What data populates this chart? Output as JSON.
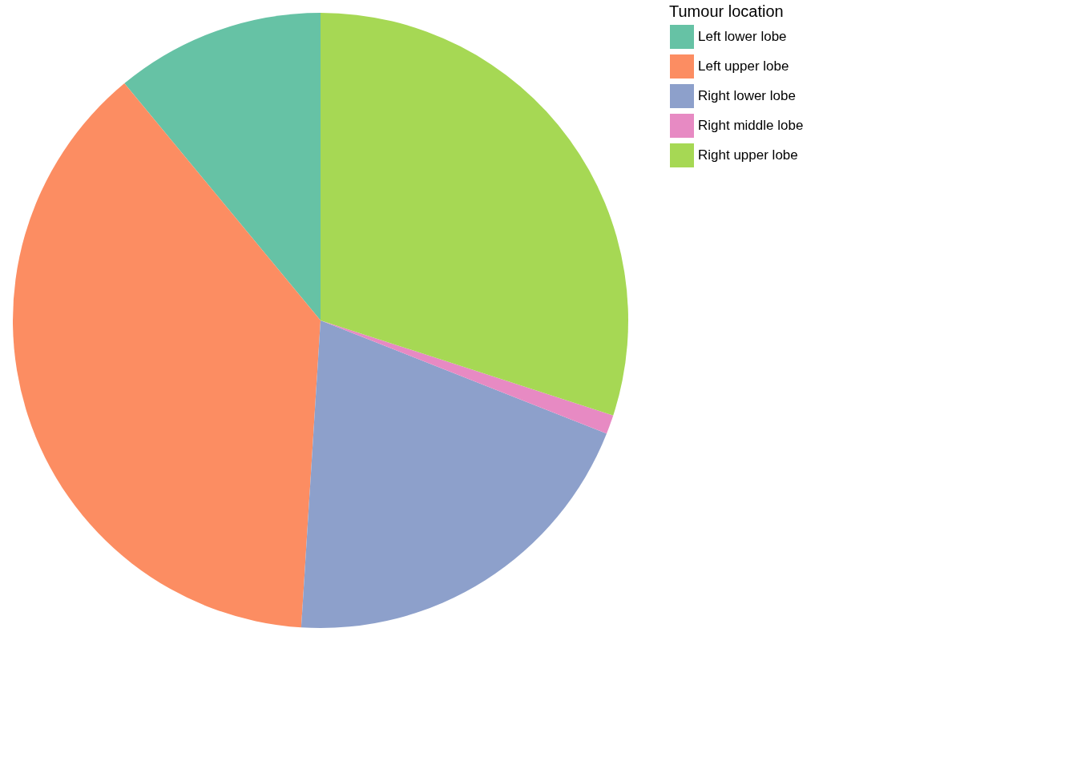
{
  "chart_data": {
    "type": "pie",
    "legend_title": "Tumour location",
    "categories": [
      "Left lower lobe",
      "Left upper lobe",
      "Right lower lobe",
      "Right middle lobe",
      "Right upper lobe"
    ],
    "values": [
      11,
      38,
      20,
      1,
      30
    ],
    "colors": [
      "#66c2a5",
      "#fc8d62",
      "#8da0cb",
      "#e78ac3",
      "#a6d854"
    ],
    "legend": "right"
  }
}
